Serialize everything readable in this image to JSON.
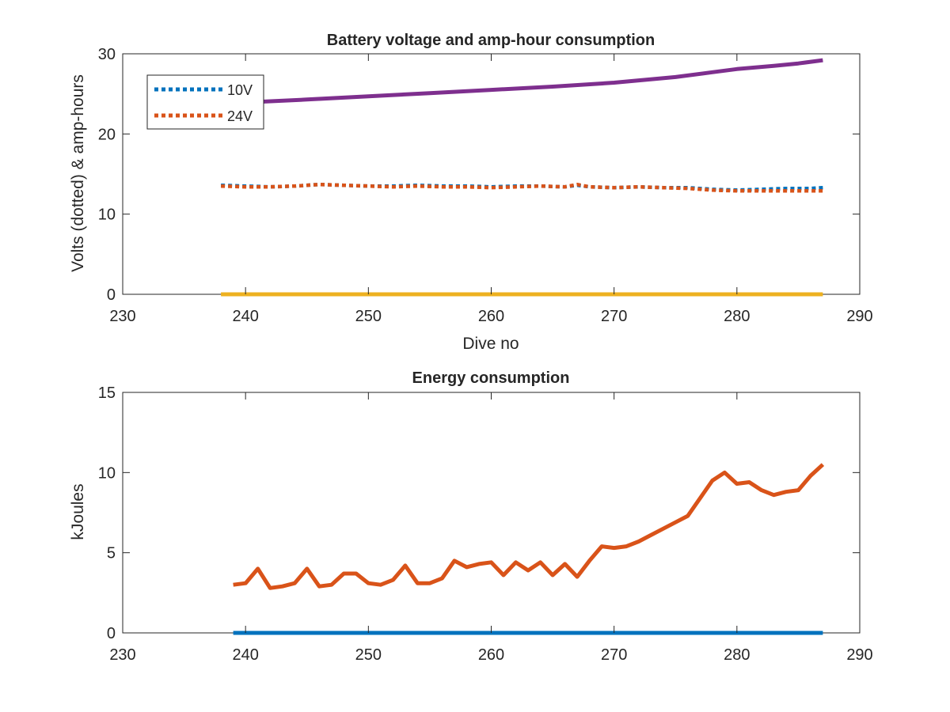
{
  "colors": {
    "blue": "#0072BD",
    "orange": "#D95319",
    "yellow": "#EDB120",
    "purple": "#7E2F8E",
    "axis": "#262626"
  },
  "chart_data": [
    {
      "type": "line",
      "title": "Battery voltage and amp-hour consumption",
      "xlabel": "Dive no",
      "ylabel": "Volts (dotted) & amp-hours",
      "xlim": [
        230,
        290
      ],
      "ylim": [
        0,
        30
      ],
      "xticks": [
        230,
        240,
        250,
        260,
        270,
        280,
        290
      ],
      "yticks": [
        0,
        10,
        20,
        30
      ],
      "grid": false,
      "legend_position": "top-left",
      "series": [
        {
          "name": "10V",
          "style": "dotted",
          "color": "#0072BD",
          "x": [
            238,
            240,
            242,
            244,
            246,
            248,
            250,
            252,
            254,
            256,
            258,
            260,
            262,
            264,
            266,
            267,
            268,
            270,
            272,
            274,
            276,
            278,
            280,
            282,
            284,
            286,
            287
          ],
          "y": [
            13.6,
            13.5,
            13.4,
            13.5,
            13.7,
            13.6,
            13.5,
            13.5,
            13.6,
            13.5,
            13.5,
            13.4,
            13.5,
            13.5,
            13.4,
            13.6,
            13.4,
            13.3,
            13.4,
            13.3,
            13.3,
            13.1,
            13.0,
            13.1,
            13.2,
            13.2,
            13.3
          ]
        },
        {
          "name": "24V",
          "style": "dotted",
          "color": "#D95319",
          "x": [
            238,
            240,
            242,
            244,
            246,
            248,
            250,
            252,
            254,
            256,
            258,
            260,
            262,
            264,
            266,
            267,
            268,
            270,
            272,
            274,
            276,
            278,
            280,
            282,
            284,
            286,
            287
          ],
          "y": [
            13.5,
            13.4,
            13.4,
            13.5,
            13.7,
            13.6,
            13.5,
            13.4,
            13.5,
            13.4,
            13.4,
            13.3,
            13.4,
            13.5,
            13.4,
            13.7,
            13.4,
            13.3,
            13.4,
            13.3,
            13.2,
            13.0,
            12.9,
            12.9,
            12.9,
            12.9,
            12.9
          ]
        },
        {
          "style": "solid",
          "color": "#7E2F8E",
          "x": [
            241,
            245,
            250,
            255,
            260,
            265,
            270,
            275,
            278,
            280,
            283,
            285,
            287
          ],
          "y": [
            24.0,
            24.3,
            24.7,
            25.1,
            25.5,
            25.9,
            26.4,
            27.1,
            27.7,
            28.1,
            28.5,
            28.8,
            29.2
          ]
        },
        {
          "style": "solid",
          "color": "#EDB120",
          "x": [
            238,
            287
          ],
          "y": [
            0,
            0
          ]
        }
      ]
    },
    {
      "type": "line",
      "title": "Energy consumption",
      "xlabel": "",
      "ylabel": "kJoules",
      "xlim": [
        230,
        290
      ],
      "ylim": [
        0,
        15
      ],
      "xticks": [
        230,
        240,
        250,
        260,
        270,
        280,
        290
      ],
      "yticks": [
        0,
        5,
        10,
        15
      ],
      "grid": false,
      "series": [
        {
          "style": "solid",
          "color": "#D95319",
          "x": [
            239,
            240,
            241,
            242,
            243,
            244,
            245,
            246,
            247,
            248,
            249,
            250,
            251,
            252,
            253,
            254,
            255,
            256,
            257,
            258,
            259,
            260,
            261,
            262,
            263,
            264,
            265,
            266,
            267,
            268,
            269,
            270,
            271,
            272,
            273,
            274,
            275,
            276,
            277,
            278,
            279,
            280,
            281,
            282,
            283,
            284,
            285,
            286,
            287
          ],
          "y": [
            3.0,
            3.1,
            4.0,
            2.8,
            2.9,
            3.1,
            4.0,
            2.9,
            3.0,
            3.7,
            3.7,
            3.1,
            3.0,
            3.3,
            4.2,
            3.1,
            3.1,
            3.4,
            4.5,
            4.1,
            4.3,
            4.4,
            3.6,
            4.4,
            3.9,
            4.4,
            3.6,
            4.3,
            3.5,
            4.5,
            5.4,
            5.3,
            5.4,
            5.7,
            6.1,
            6.5,
            6.9,
            7.3,
            8.4,
            9.5,
            10.0,
            9.3,
            9.4,
            8.9,
            8.6,
            8.8,
            8.9,
            9.8,
            10.5
          ]
        },
        {
          "style": "solid",
          "color": "#0072BD",
          "x": [
            239,
            287
          ],
          "y": [
            0,
            0
          ]
        }
      ]
    }
  ]
}
